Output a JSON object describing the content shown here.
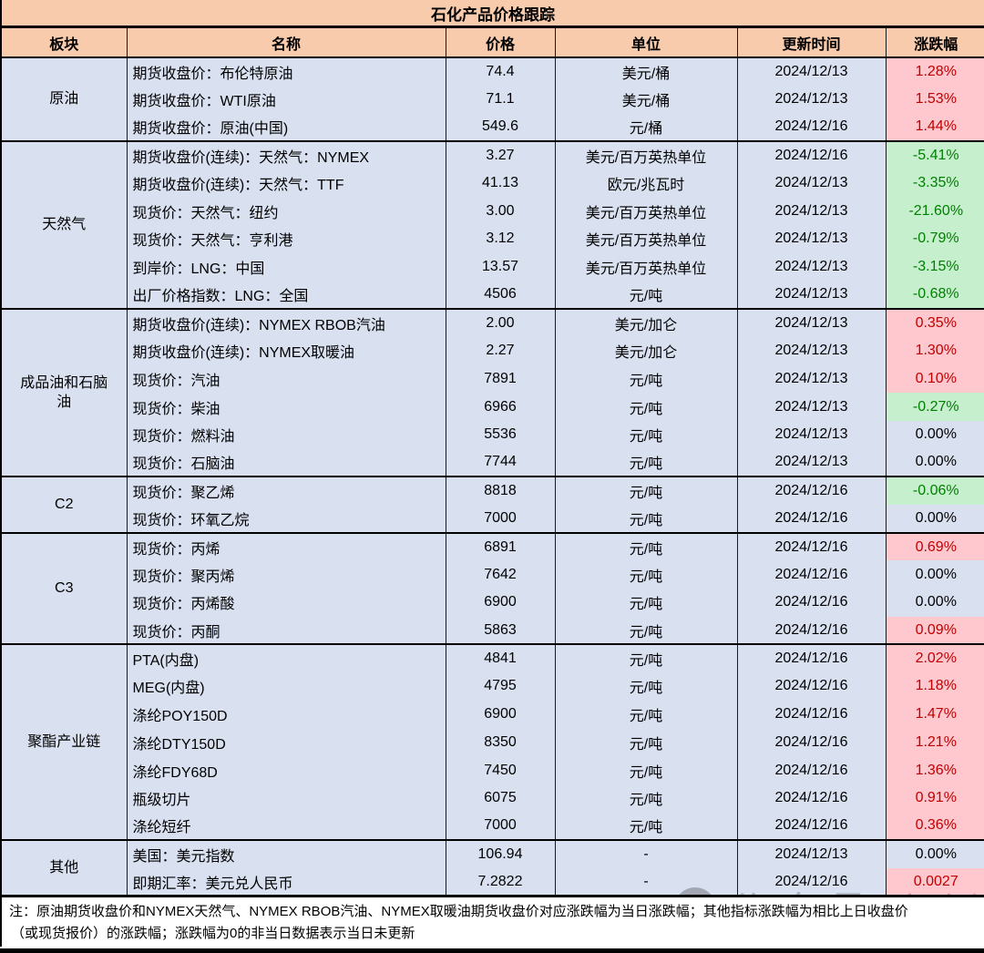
{
  "title": "石化产品价格跟踪",
  "columns": [
    "板块",
    "名称",
    "价格",
    "单位",
    "更新时间",
    "涨跌幅"
  ],
  "sections": [
    {
      "name": "原油",
      "rows": [
        {
          "name": "期货收盘价：布伦特原油",
          "price": "74.4",
          "unit": "美元/桶",
          "date": "2024/12/13",
          "change": "1.28%",
          "trend": "up"
        },
        {
          "name": "期货收盘价：WTI原油",
          "price": "71.1",
          "unit": "美元/桶",
          "date": "2024/12/13",
          "change": "1.53%",
          "trend": "up"
        },
        {
          "name": "期货收盘价：原油(中国)",
          "price": "549.6",
          "unit": "元/桶",
          "date": "2024/12/16",
          "change": "1.44%",
          "trend": "up"
        }
      ]
    },
    {
      "name": "天然气",
      "rows": [
        {
          "name": "期货收盘价(连续)：天然气：NYMEX",
          "price": "3.27",
          "unit": "美元/百万英热单位",
          "date": "2024/12/16",
          "change": "-5.41%",
          "trend": "down"
        },
        {
          "name": "期货收盘价(连续)：天然气：TTF",
          "price": "41.13",
          "unit": "欧元/兆瓦时",
          "date": "2024/12/13",
          "change": "-3.35%",
          "trend": "down"
        },
        {
          "name": "现货价：天然气：纽约",
          "price": "3.00",
          "unit": "美元/百万英热单位",
          "date": "2024/12/13",
          "change": "-21.60%",
          "trend": "down"
        },
        {
          "name": "现货价：天然气：亨利港",
          "price": "3.12",
          "unit": "美元/百万英热单位",
          "date": "2024/12/13",
          "change": "-0.79%",
          "trend": "down"
        },
        {
          "name": "到岸价：LNG：中国",
          "price": "13.57",
          "unit": "美元/百万英热单位",
          "date": "2024/12/13",
          "change": "-3.15%",
          "trend": "down"
        },
        {
          "name": "出厂价格指数：LNG：全国",
          "price": "4506",
          "unit": "元/吨",
          "date": "2024/12/13",
          "change": "-0.68%",
          "trend": "down"
        }
      ]
    },
    {
      "name": "成品油和石脑油",
      "rows": [
        {
          "name": "期货收盘价(连续)：NYMEX RBOB汽油",
          "price": "2.00",
          "unit": "美元/加仑",
          "date": "2024/12/13",
          "change": "0.35%",
          "trend": "up"
        },
        {
          "name": "期货收盘价(连续)：NYMEX取暖油",
          "price": "2.27",
          "unit": "美元/加仑",
          "date": "2024/12/13",
          "change": "1.30%",
          "trend": "up"
        },
        {
          "name": "现货价：汽油",
          "price": "7891",
          "unit": "元/吨",
          "date": "2024/12/13",
          "change": "0.10%",
          "trend": "up"
        },
        {
          "name": "现货价：柴油",
          "price": "6966",
          "unit": "元/吨",
          "date": "2024/12/13",
          "change": "-0.27%",
          "trend": "down"
        },
        {
          "name": "现货价：燃料油",
          "price": "5536",
          "unit": "元/吨",
          "date": "2024/12/13",
          "change": "0.00%",
          "trend": "flat"
        },
        {
          "name": "现货价：石脑油",
          "price": "7744",
          "unit": "元/吨",
          "date": "2024/12/13",
          "change": "0.00%",
          "trend": "flat"
        }
      ]
    },
    {
      "name": "C2",
      "rows": [
        {
          "name": "现货价：聚乙烯",
          "price": "8818",
          "unit": "元/吨",
          "date": "2024/12/16",
          "change": "-0.06%",
          "trend": "down"
        },
        {
          "name": "现货价：环氧乙烷",
          "price": "7000",
          "unit": "元/吨",
          "date": "2024/12/16",
          "change": "0.00%",
          "trend": "flat"
        }
      ]
    },
    {
      "name": "C3",
      "rows": [
        {
          "name": "现货价：丙烯",
          "price": "6891",
          "unit": "元/吨",
          "date": "2024/12/16",
          "change": "0.69%",
          "trend": "up"
        },
        {
          "name": "现货价：聚丙烯",
          "price": "7642",
          "unit": "元/吨",
          "date": "2024/12/16",
          "change": "0.00%",
          "trend": "flat"
        },
        {
          "name": "现货价：丙烯酸",
          "price": "6900",
          "unit": "元/吨",
          "date": "2024/12/16",
          "change": "0.00%",
          "trend": "flat"
        },
        {
          "name": "现货价：丙酮",
          "price": "5863",
          "unit": "元/吨",
          "date": "2024/12/16",
          "change": "0.09%",
          "trend": "up"
        }
      ]
    },
    {
      "name": "聚酯产业链",
      "rows": [
        {
          "name": "PTA(内盘)",
          "price": "4841",
          "unit": "元/吨",
          "date": "2024/12/16",
          "change": "2.02%",
          "trend": "up"
        },
        {
          "name": "MEG(内盘)",
          "price": "4795",
          "unit": "元/吨",
          "date": "2024/12/16",
          "change": "1.18%",
          "trend": "up"
        },
        {
          "name": "涤纶POY150D",
          "price": "6900",
          "unit": "元/吨",
          "date": "2024/12/16",
          "change": "1.47%",
          "trend": "up"
        },
        {
          "name": "涤纶DTY150D",
          "price": "8350",
          "unit": "元/吨",
          "date": "2024/12/16",
          "change": "1.21%",
          "trend": "up"
        },
        {
          "name": "涤纶FDY68D",
          "price": "7450",
          "unit": "元/吨",
          "date": "2024/12/16",
          "change": "1.36%",
          "trend": "up"
        },
        {
          "name": "瓶级切片",
          "price": "6075",
          "unit": "元/吨",
          "date": "2024/12/16",
          "change": "0.91%",
          "trend": "up"
        },
        {
          "name": "涤纶短纤",
          "price": "7000",
          "unit": "元/吨",
          "date": "2024/12/16",
          "change": "0.36%",
          "trend": "up"
        }
      ]
    },
    {
      "name": "其他",
      "rows": [
        {
          "name": "美国：美元指数",
          "price": "106.94",
          "unit": "-",
          "date": "2024/12/13",
          "change": "0.00%",
          "trend": "flat"
        },
        {
          "name": "即期汇率：美元兑人民币",
          "price": "7.2822",
          "unit": "-",
          "date": "2024/12/16",
          "change": "0.0027",
          "trend": "up"
        }
      ]
    }
  ],
  "note": {
    "line1": "注：原油期货收盘价和NYMEX天然气、NYMEX RBOB汽油、NYMEX取暖油期货收盘价对应涨跌幅为当日涨跌幅；其他指标涨跌幅为相比上日收盘价",
    "line2": "（或现货报价）的涨跌幅；涨跌幅为0的非当日数据表示当日未更新"
  },
  "watermark": {
    "label": "公众号",
    "account_name": "春庶煤炭"
  },
  "colors": {
    "header_bg": "#F8CBAD",
    "body_bg": "#D9E0F0",
    "up_bg": "#FFC7CE",
    "up_text": "#C00000",
    "down_bg": "#C6EFCE",
    "down_text": "#008000",
    "border": "#000000"
  }
}
